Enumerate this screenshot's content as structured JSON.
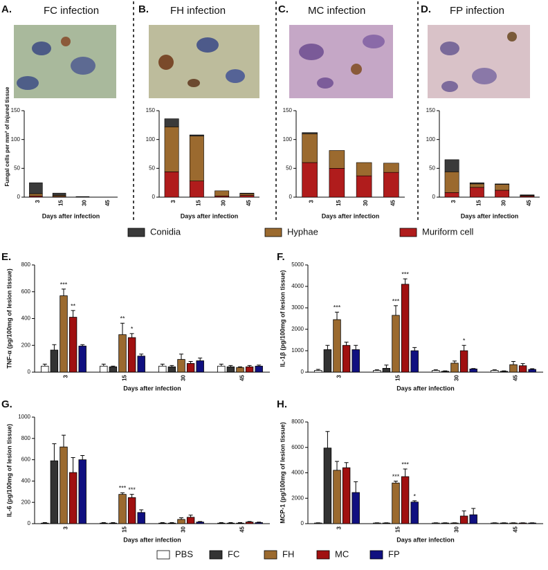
{
  "chart_data": [
    {
      "type": "stacked_bar",
      "panel": "A.",
      "title": "FC infection",
      "ylabel": "Fungal cells per mm² of injured tissue",
      "xlabel": "Days after infection",
      "categories": [
        "3",
        "15",
        "30",
        "45"
      ],
      "ylim": [
        0,
        150
      ],
      "yticks": [
        0,
        50,
        100,
        150
      ],
      "series": [
        {
          "name": "Muriform cell",
          "color": "#b01c1c",
          "values": [
            2,
            1,
            0,
            0
          ]
        },
        {
          "name": "Hyphae",
          "color": "#9b6a2f",
          "values": [
            4,
            2,
            0.5,
            0
          ]
        },
        {
          "name": "Conidia",
          "color": "#3a3a3a",
          "values": [
            19,
            4,
            0.5,
            0
          ]
        }
      ]
    },
    {
      "type": "stacked_bar",
      "panel": "B.",
      "title": "FH infection",
      "xlabel": "Days after infection",
      "categories": [
        "3",
        "15",
        "30",
        "45"
      ],
      "ylim": [
        0,
        150
      ],
      "yticks": [
        0,
        50,
        100,
        150
      ],
      "series": [
        {
          "name": "Muriform cell",
          "color": "#b01c1c",
          "values": [
            44,
            28,
            2,
            3
          ]
        },
        {
          "name": "Hyphae",
          "color": "#9b6a2f",
          "values": [
            78,
            78,
            9,
            3
          ]
        },
        {
          "name": "Conidia",
          "color": "#3a3a3a",
          "values": [
            14,
            2,
            0,
            1
          ]
        }
      ]
    },
    {
      "type": "stacked_bar",
      "panel": "C.",
      "title": "MC infection",
      "xlabel": "Days after infection",
      "categories": [
        "3",
        "15",
        "30",
        "45"
      ],
      "ylim": [
        0,
        150
      ],
      "yticks": [
        0,
        50,
        100,
        150
      ],
      "series": [
        {
          "name": "Muriform cell",
          "color": "#b01c1c",
          "values": [
            60,
            50,
            37,
            43
          ]
        },
        {
          "name": "Hyphae",
          "color": "#9b6a2f",
          "values": [
            50,
            31,
            23,
            16
          ]
        },
        {
          "name": "Conidia",
          "color": "#3a3a3a",
          "values": [
            2,
            0,
            0,
            0
          ]
        }
      ]
    },
    {
      "type": "stacked_bar",
      "panel": "D.",
      "title": "FP infection",
      "xlabel": "Days after infection",
      "categories": [
        "3",
        "15",
        "30",
        "45"
      ],
      "ylim": [
        0,
        150
      ],
      "yticks": [
        0,
        50,
        100,
        150
      ],
      "series": [
        {
          "name": "Muriform cell",
          "color": "#b01c1c",
          "values": [
            8,
            17,
            12,
            2
          ]
        },
        {
          "name": "Hyphae",
          "color": "#9b6a2f",
          "values": [
            36,
            6,
            10,
            1
          ]
        },
        {
          "name": "Conidia",
          "color": "#3a3a3a",
          "values": [
            21,
            2,
            1,
            1
          ]
        }
      ]
    },
    {
      "type": "grouped_bar",
      "panel": "E.",
      "ylabel": "TNF-α (pg/100mg of lesion tissue)",
      "xlabel": "Days after infection",
      "categories": [
        "3",
        "15",
        "30",
        "45"
      ],
      "ylim": [
        0,
        800
      ],
      "yticks": [
        0,
        200,
        400,
        600,
        800
      ],
      "series": [
        {
          "name": "PBS",
          "color": "#ffffff",
          "values": [
            45,
            45,
            45,
            45
          ],
          "errors": [
            15,
            15,
            15,
            15
          ],
          "stars": [
            null,
            null,
            null,
            null
          ]
        },
        {
          "name": "FC",
          "color": "#333333",
          "values": [
            165,
            40,
            40,
            40
          ],
          "errors": [
            40,
            5,
            10,
            10
          ],
          "stars": [
            null,
            null,
            null,
            null
          ]
        },
        {
          "name": "FH",
          "color": "#9b6a2f",
          "values": [
            570,
            280,
            95,
            35
          ],
          "errors": [
            50,
            85,
            40,
            5
          ],
          "stars": [
            "***",
            "**",
            null,
            null
          ]
        },
        {
          "name": "MC",
          "color": "#a01010",
          "values": [
            410,
            258,
            65,
            40
          ],
          "errors": [
            50,
            30,
            15,
            10
          ],
          "stars": [
            "**",
            "*",
            null,
            null
          ]
        },
        {
          "name": "FP",
          "color": "#101080",
          "values": [
            195,
            120,
            85,
            45
          ],
          "errors": [
            10,
            15,
            20,
            8
          ],
          "stars": [
            null,
            null,
            null,
            null
          ]
        }
      ]
    },
    {
      "type": "grouped_bar",
      "panel": "F.",
      "ylabel": "IL-1β (pg/100mg of lesion tissue)",
      "xlabel": "Days after infection",
      "categories": [
        "3",
        "15",
        "30",
        "45"
      ],
      "ylim": [
        0,
        5000
      ],
      "yticks": [
        0,
        1000,
        2000,
        3000,
        4000,
        5000
      ],
      "series": [
        {
          "name": "PBS",
          "color": "#ffffff",
          "values": [
            80,
            80,
            80,
            80
          ],
          "errors": [
            50,
            30,
            30,
            30
          ],
          "stars": [
            null,
            null,
            null,
            null
          ]
        },
        {
          "name": "FC",
          "color": "#333333",
          "values": [
            1050,
            180,
            40,
            40
          ],
          "errors": [
            200,
            150,
            20,
            20
          ],
          "stars": [
            null,
            null,
            null,
            null
          ]
        },
        {
          "name": "FH",
          "color": "#9b6a2f",
          "values": [
            2450,
            2650,
            420,
            350
          ],
          "errors": [
            350,
            450,
            100,
            150
          ],
          "stars": [
            "***",
            "***",
            null,
            null
          ]
        },
        {
          "name": "MC",
          "color": "#a01010",
          "values": [
            1250,
            4100,
            1000,
            300
          ],
          "errors": [
            150,
            250,
            250,
            100
          ],
          "stars": [
            null,
            "***",
            "*",
            null
          ]
        },
        {
          "name": "FP",
          "color": "#101080",
          "values": [
            1050,
            1000,
            150,
            130
          ],
          "errors": [
            200,
            150,
            20,
            30
          ],
          "stars": [
            null,
            null,
            null,
            null
          ]
        }
      ]
    },
    {
      "type": "grouped_bar",
      "panel": "G.",
      "ylabel": "IL-6 (pg/100mg of lesion tissue)",
      "xlabel": "Days after infection",
      "categories": [
        "3",
        "15",
        "30",
        "45"
      ],
      "ylim": [
        0,
        1000
      ],
      "yticks": [
        0,
        200,
        400,
        600,
        800,
        1000
      ],
      "series": [
        {
          "name": "PBS",
          "color": "#ffffff",
          "values": [
            5,
            5,
            5,
            5
          ],
          "errors": [
            5,
            5,
            5,
            5
          ],
          "stars": [
            null,
            null,
            null,
            null
          ]
        },
        {
          "name": "FC",
          "color": "#333333",
          "values": [
            590,
            5,
            5,
            5
          ],
          "errors": [
            160,
            5,
            5,
            5
          ],
          "stars": [
            null,
            null,
            null,
            null
          ]
        },
        {
          "name": "FH",
          "color": "#9b6a2f",
          "values": [
            720,
            275,
            40,
            5
          ],
          "errors": [
            110,
            15,
            15,
            5
          ],
          "stars": [
            null,
            "***",
            null,
            null
          ]
        },
        {
          "name": "MC",
          "color": "#a01010",
          "values": [
            480,
            245,
            60,
            15
          ],
          "errors": [
            140,
            30,
            20,
            5
          ],
          "stars": [
            null,
            "***",
            null,
            null
          ]
        },
        {
          "name": "FP",
          "color": "#101080",
          "values": [
            600,
            105,
            15,
            10
          ],
          "errors": [
            40,
            25,
            5,
            5
          ],
          "stars": [
            null,
            null,
            null,
            null
          ]
        }
      ]
    },
    {
      "type": "grouped_bar",
      "panel": "H.",
      "ylabel": "MCP-1 (pg/100mg of lesion tissue)",
      "xlabel": "Days after infection",
      "categories": [
        "3",
        "15",
        "30",
        "45"
      ],
      "ylim": [
        0,
        8000
      ],
      "yticks": [
        0,
        2000,
        4000,
        6000,
        8000
      ],
      "series": [
        {
          "name": "PBS",
          "color": "#ffffff",
          "values": [
            50,
            50,
            50,
            50
          ],
          "errors": [
            20,
            20,
            20,
            20
          ],
          "stars": [
            null,
            null,
            null,
            null
          ]
        },
        {
          "name": "FC",
          "color": "#333333",
          "values": [
            5950,
            50,
            50,
            50
          ],
          "errors": [
            1300,
            20,
            20,
            20
          ],
          "stars": [
            null,
            null,
            null,
            null
          ]
        },
        {
          "name": "FH",
          "color": "#9b6a2f",
          "values": [
            4200,
            3200,
            50,
            50
          ],
          "errors": [
            700,
            150,
            20,
            20
          ],
          "stars": [
            null,
            "***",
            null,
            null
          ]
        },
        {
          "name": "MC",
          "color": "#a01010",
          "values": [
            4400,
            3700,
            600,
            50
          ],
          "errors": [
            400,
            600,
            400,
            20
          ],
          "stars": [
            null,
            "***",
            null,
            null
          ]
        },
        {
          "name": "FP",
          "color": "#101080",
          "values": [
            2450,
            1700,
            700,
            50
          ],
          "errors": [
            850,
            100,
            500,
            20
          ],
          "stars": [
            null,
            "*",
            null,
            null
          ]
        }
      ]
    }
  ]
}
